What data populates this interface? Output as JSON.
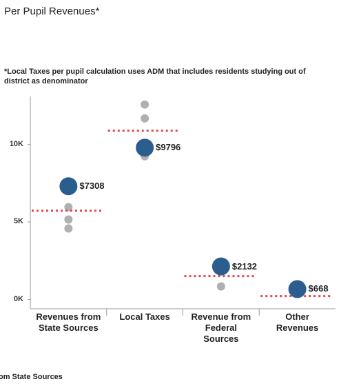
{
  "chart_data": {
    "type": "dot",
    "title": "Per Pupil Revenues*",
    "subtitle": "*Local Taxes per pupil calculation uses ADM that includes residents studying out of district as denominator",
    "categories": [
      "Revenues from State Sources",
      "Local Taxes",
      "Revenue from Federal Sources",
      "Other Revenues"
    ],
    "values": [
      7308,
      9796,
      2132,
      668
    ],
    "value_labels": [
      "$7308",
      "$9796",
      "$2132",
      "$668"
    ],
    "color": "#2c5d8f",
    "comparison_values": [
      [
        5960,
        5160,
        4580
      ],
      [
        12580,
        11690,
        9240
      ],
      [
        840
      ],
      []
    ],
    "comparison_color": "#b0b0b0",
    "reference_values": [
      5730,
      10890,
      1510,
      220
    ],
    "reference_color": "#e0474c",
    "ylim": [
      -600,
      13100
    ],
    "yticks": [
      {
        "value": 0,
        "label": "0K"
      },
      {
        "value": 5000,
        "label": "5K"
      },
      {
        "value": 10000,
        "label": "10K"
      }
    ],
    "footer": "om State Sources"
  }
}
